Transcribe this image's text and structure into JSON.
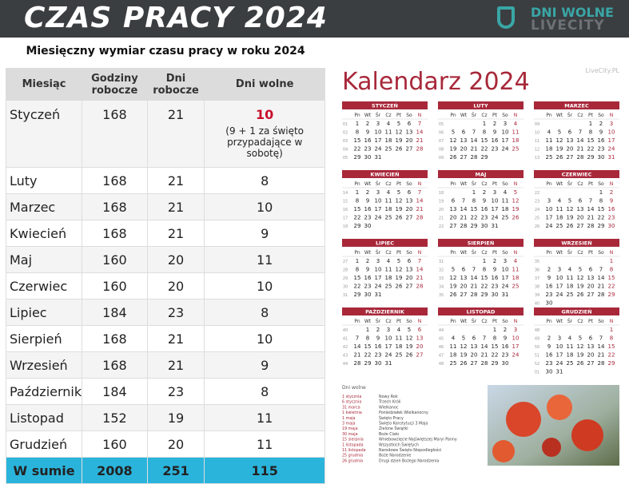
{
  "header": {
    "title": "CZAS PRACY 2024",
    "logo_top": "DNI WOLNE",
    "logo_bottom": "LIVECITY"
  },
  "table": {
    "title": "Miesięczny wymiar czasu pracy w roku 2024",
    "columns": [
      "Miesiąc",
      "Godziny robocze",
      "Dni robocze",
      "Dni wolne"
    ],
    "rows": [
      [
        "Styczeń",
        168,
        21,
        10
      ],
      [
        "Luty",
        168,
        21,
        8
      ],
      [
        "Marzec",
        168,
        21,
        10
      ],
      [
        "Kwiecień",
        168,
        21,
        9
      ],
      [
        "Maj",
        160,
        20,
        11
      ],
      [
        "Czerwiec",
        160,
        20,
        10
      ],
      [
        "Lipiec",
        184,
        23,
        8
      ],
      [
        "Sierpień",
        168,
        21,
        10
      ],
      [
        "Wrzesień",
        168,
        21,
        9
      ],
      [
        "Październik",
        184,
        23,
        8
      ],
      [
        "Listopad",
        152,
        19,
        11
      ],
      [
        "Grudzień",
        160,
        20,
        11
      ]
    ],
    "note": "(9 + 1 za święto przypadające w sobotę)",
    "total": [
      "W sumie",
      2008,
      251,
      115
    ]
  },
  "calendar": {
    "title": "Kalendarz 2024",
    "watermark": "LiveCity.PL",
    "weekdays": [
      "Pn",
      "Wt",
      "Śr",
      "Cz",
      "Pt",
      "So",
      "N"
    ],
    "months": [
      {
        "name": "STYCZEŃ",
        "weeks": [
          "01",
          "02",
          "03",
          "04",
          "05"
        ],
        "rows": [
          [
            1,
            2,
            3,
            4,
            5,
            6,
            7
          ],
          [
            8,
            9,
            10,
            11,
            12,
            13,
            14
          ],
          [
            15,
            16,
            17,
            18,
            19,
            20,
            21
          ],
          [
            22,
            23,
            24,
            25,
            26,
            27,
            28
          ],
          [
            29,
            30,
            31,
            null,
            null,
            null,
            null
          ]
        ]
      },
      {
        "name": "LUTY",
        "weeks": [
          "05",
          "06",
          "07",
          "08",
          "09"
        ],
        "rows": [
          [
            null,
            null,
            null,
            1,
            2,
            3,
            4
          ],
          [
            5,
            6,
            7,
            8,
            9,
            10,
            11
          ],
          [
            12,
            13,
            14,
            15,
            16,
            17,
            18
          ],
          [
            19,
            20,
            21,
            22,
            23,
            24,
            25
          ],
          [
            26,
            27,
            28,
            29,
            null,
            null,
            null
          ]
        ]
      },
      {
        "name": "MARZEC",
        "weeks": [
          "09",
          "10",
          "11",
          "12",
          "13"
        ],
        "rows": [
          [
            null,
            null,
            null,
            null,
            1,
            2,
            3
          ],
          [
            4,
            5,
            6,
            7,
            8,
            9,
            10
          ],
          [
            11,
            12,
            13,
            14,
            15,
            16,
            17
          ],
          [
            18,
            19,
            20,
            21,
            22,
            23,
            24
          ],
          [
            25,
            26,
            27,
            28,
            29,
            30,
            31
          ]
        ]
      },
      {
        "name": "KWIECIEŃ",
        "weeks": [
          "14",
          "15",
          "16",
          "17",
          "18"
        ],
        "rows": [
          [
            1,
            2,
            3,
            4,
            5,
            6,
            7
          ],
          [
            8,
            9,
            10,
            11,
            12,
            13,
            14
          ],
          [
            15,
            16,
            17,
            18,
            19,
            20,
            21
          ],
          [
            22,
            23,
            24,
            25,
            26,
            27,
            28
          ],
          [
            29,
            30,
            null,
            null,
            null,
            null,
            null
          ]
        ]
      },
      {
        "name": "MAJ",
        "weeks": [
          "18",
          "19",
          "20",
          "21",
          "22"
        ],
        "rows": [
          [
            null,
            null,
            1,
            2,
            3,
            4,
            5
          ],
          [
            6,
            7,
            8,
            9,
            10,
            11,
            12
          ],
          [
            13,
            14,
            15,
            16,
            17,
            18,
            19
          ],
          [
            20,
            21,
            22,
            23,
            24,
            25,
            26
          ],
          [
            27,
            28,
            29,
            30,
            31,
            null,
            null
          ]
        ]
      },
      {
        "name": "CZERWIEC",
        "weeks": [
          "22",
          "23",
          "24",
          "25",
          "26"
        ],
        "rows": [
          [
            null,
            null,
            null,
            null,
            null,
            1,
            2
          ],
          [
            3,
            4,
            5,
            6,
            7,
            8,
            9
          ],
          [
            10,
            11,
            12,
            13,
            14,
            15,
            16
          ],
          [
            17,
            18,
            19,
            20,
            21,
            22,
            23
          ],
          [
            24,
            25,
            26,
            27,
            28,
            29,
            30
          ]
        ]
      },
      {
        "name": "LIPIEC",
        "weeks": [
          "27",
          "28",
          "29",
          "30",
          "31"
        ],
        "rows": [
          [
            1,
            2,
            3,
            4,
            5,
            6,
            7
          ],
          [
            8,
            9,
            10,
            11,
            12,
            13,
            14
          ],
          [
            15,
            16,
            17,
            18,
            19,
            20,
            21
          ],
          [
            22,
            23,
            24,
            25,
            26,
            27,
            28
          ],
          [
            29,
            30,
            31,
            null,
            null,
            null,
            null
          ]
        ]
      },
      {
        "name": "SIERPIEŃ",
        "weeks": [
          "31",
          "32",
          "33",
          "34",
          "35"
        ],
        "rows": [
          [
            null,
            null,
            null,
            1,
            2,
            3,
            4
          ],
          [
            5,
            6,
            7,
            8,
            9,
            10,
            11
          ],
          [
            12,
            13,
            14,
            15,
            16,
            17,
            18
          ],
          [
            19,
            20,
            21,
            22,
            23,
            24,
            25
          ],
          [
            26,
            27,
            28,
            29,
            30,
            31,
            null
          ]
        ]
      },
      {
        "name": "WRZESIEŃ",
        "weeks": [
          "35",
          "36",
          "37",
          "38",
          "39",
          "40"
        ],
        "rows": [
          [
            null,
            null,
            null,
            null,
            null,
            null,
            1
          ],
          [
            2,
            3,
            4,
            5,
            6,
            7,
            8
          ],
          [
            9,
            10,
            11,
            12,
            13,
            14,
            15
          ],
          [
            16,
            17,
            18,
            19,
            20,
            21,
            22
          ],
          [
            23,
            24,
            25,
            26,
            27,
            28,
            29
          ],
          [
            30,
            null,
            null,
            null,
            null,
            null,
            null
          ]
        ]
      },
      {
        "name": "PAŹDZIERNIK",
        "weeks": [
          "40",
          "41",
          "42",
          "43",
          "44"
        ],
        "rows": [
          [
            null,
            1,
            2,
            3,
            4,
            5,
            6
          ],
          [
            7,
            8,
            9,
            10,
            11,
            12,
            13
          ],
          [
            14,
            15,
            16,
            17,
            18,
            19,
            20
          ],
          [
            21,
            22,
            23,
            24,
            25,
            26,
            27
          ],
          [
            28,
            29,
            30,
            31,
            null,
            null,
            null
          ]
        ]
      },
      {
        "name": "LISTOPAD",
        "weeks": [
          "44",
          "45",
          "46",
          "47",
          "48"
        ],
        "rows": [
          [
            null,
            null,
            null,
            null,
            1,
            2,
            3
          ],
          [
            4,
            5,
            6,
            7,
            8,
            9,
            10
          ],
          [
            11,
            12,
            13,
            14,
            15,
            16,
            17
          ],
          [
            18,
            19,
            20,
            21,
            22,
            23,
            24
          ],
          [
            25,
            26,
            27,
            28,
            29,
            30,
            null
          ]
        ]
      },
      {
        "name": "GRUDZIEŃ",
        "weeks": [
          "48",
          "49",
          "50",
          "51",
          "52",
          "01"
        ],
        "rows": [
          [
            null,
            null,
            null,
            null,
            null,
            null,
            1
          ],
          [
            2,
            3,
            4,
            5,
            6,
            7,
            8
          ],
          [
            9,
            10,
            11,
            12,
            13,
            14,
            15
          ],
          [
            16,
            17,
            18,
            19,
            20,
            21,
            22
          ],
          [
            23,
            24,
            25,
            26,
            27,
            28,
            29
          ],
          [
            30,
            31,
            null,
            null,
            null,
            null,
            null
          ]
        ]
      }
    ],
    "holidays_title": "Dni wolne",
    "holidays": [
      [
        "1 stycznia",
        "Nowy Rok"
      ],
      [
        "6 stycznia",
        "Trzech Króli"
      ],
      [
        "31 marca",
        "Wielkanoc"
      ],
      [
        "1 kwietnia",
        "Poniedziałek Wielkanocny"
      ],
      [
        "1 maja",
        "Święto Pracy"
      ],
      [
        "3 maja",
        "Święto Konstytucji 3 Maja"
      ],
      [
        "19 maja",
        "Zielone Świątki"
      ],
      [
        "30 maja",
        "Boże Ciało"
      ],
      [
        "15 sierpnia",
        "Wniebowzięcie Najświętszej Maryi Panny"
      ],
      [
        "1 listopada",
        "Wszystkich Świętych"
      ],
      [
        "11 listopada",
        "Narodowe Święto Niepodległości"
      ],
      [
        "25 grudnia",
        "Boże Narodzenie"
      ],
      [
        "26 grudnia",
        "Drugi dzień Bożego Narodzenia"
      ]
    ]
  }
}
